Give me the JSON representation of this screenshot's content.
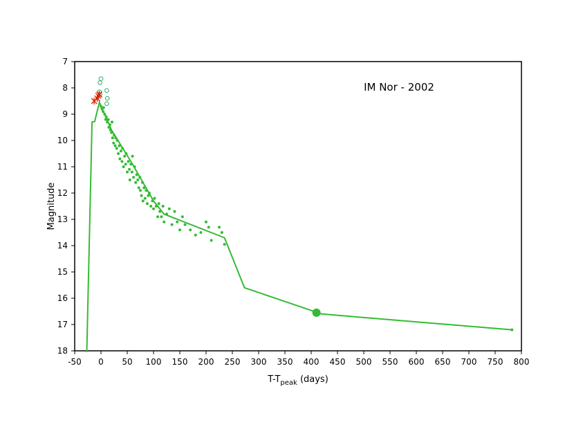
{
  "chart_data": {
    "type": "scatter",
    "annotation": "IM Nor - 2002",
    "ylabel": "Magnitude",
    "xlabel": [
      "T-T",
      "peak",
      " (days)"
    ],
    "xlim": [
      -50,
      800
    ],
    "xticks": [
      -50,
      0,
      50,
      100,
      150,
      200,
      250,
      300,
      350,
      400,
      450,
      500,
      550,
      600,
      650,
      700,
      750,
      800
    ],
    "ylim": [
      7,
      18
    ],
    "yticks": [
      7,
      8,
      9,
      10,
      11,
      12,
      13,
      14,
      15,
      16,
      17,
      18
    ],
    "y_inverted": true,
    "series": [
      {
        "marker": "line",
        "color": "#33bb33",
        "x": [
          -27,
          -17,
          -12,
          -3,
          20,
          60,
          100,
          120,
          235,
          273,
          420,
          782
        ],
        "values": [
          18.05,
          9.3,
          9.28,
          8.55,
          9.6,
          10.9,
          12.3,
          12.8,
          13.7,
          15.6,
          16.6,
          17.2
        ]
      },
      {
        "marker": "dot",
        "color": "#33bb33",
        "x": [
          0,
          2,
          4,
          5,
          7,
          9,
          10,
          12,
          14,
          15,
          17,
          18,
          20,
          21,
          22,
          24,
          25,
          27,
          28,
          30,
          31,
          33,
          35,
          36,
          38,
          40,
          41,
          43,
          45,
          47,
          48,
          50,
          52,
          54,
          55,
          57,
          59,
          60,
          62,
          64,
          66,
          68,
          70,
          72,
          74,
          75,
          77,
          79,
          80,
          82,
          84,
          86,
          88,
          90,
          92,
          95,
          98,
          100,
          102,
          105,
          108,
          110,
          112,
          115,
          118,
          120,
          125,
          130,
          135,
          140,
          145,
          150,
          155,
          160,
          170,
          180,
          190,
          200,
          205,
          210,
          225,
          230,
          235,
          782
        ],
        "values": [
          8.7,
          8.8,
          8.9,
          8.75,
          9.0,
          9.2,
          9.1,
          9.3,
          9.2,
          9.5,
          9.4,
          9.6,
          9.7,
          9.3,
          9.9,
          10.1,
          9.8,
          10.2,
          9.9,
          10.3,
          10.0,
          10.5,
          10.2,
          10.7,
          10.4,
          10.8,
          10.3,
          11.0,
          10.6,
          10.9,
          10.5,
          11.2,
          10.8,
          11.1,
          11.5,
          10.9,
          11.2,
          10.6,
          11.4,
          11.0,
          11.6,
          11.3,
          11.5,
          11.8,
          11.4,
          11.9,
          12.1,
          11.6,
          12.3,
          11.8,
          12.2,
          11.9,
          12.4,
          12.1,
          12.0,
          12.5,
          12.3,
          12.6,
          12.2,
          12.5,
          12.9,
          12.4,
          12.7,
          12.9,
          12.5,
          13.1,
          12.8,
          12.6,
          13.2,
          12.7,
          13.1,
          13.4,
          12.9,
          13.2,
          13.4,
          13.6,
          13.5,
          13.1,
          13.3,
          13.8,
          13.3,
          13.5,
          13.95,
          17.2
        ]
      },
      {
        "marker": "open-circle",
        "color": "#33aa66",
        "x": [
          -3,
          -2,
          0,
          11,
          12,
          11,
          -2
        ],
        "values": [
          8.15,
          7.8,
          7.65,
          8.1,
          8.4,
          8.6,
          8.25
        ]
      },
      {
        "marker": "asterisk",
        "color": "#dd2200",
        "x": [
          -13,
          -7,
          -5,
          -3
        ],
        "values": [
          8.5,
          8.4,
          8.3,
          8.25
        ]
      },
      {
        "marker": "big-dot",
        "color": "#33bb33",
        "x": [
          410
        ],
        "values": [
          16.55
        ]
      }
    ]
  }
}
